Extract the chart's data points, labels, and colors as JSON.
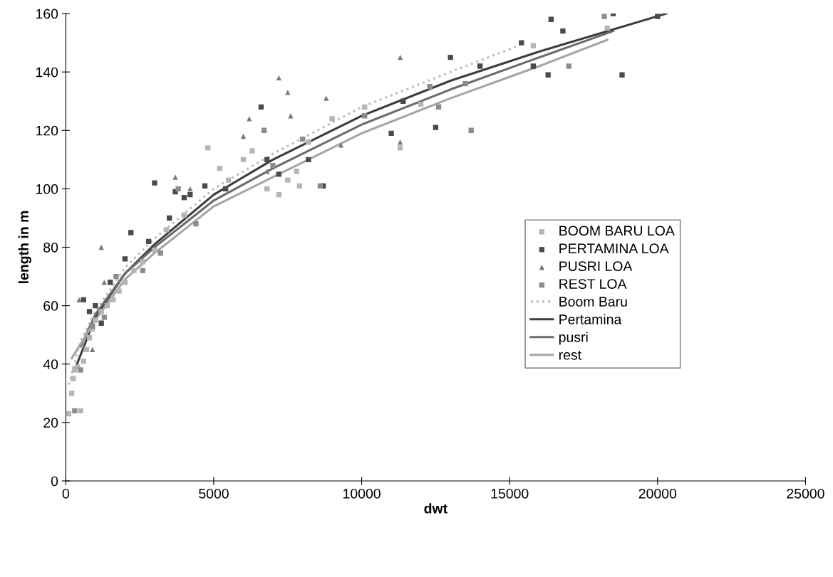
{
  "chart_data": {
    "type": "scatter",
    "xlabel": "dwt",
    "ylabel": "length in m",
    "xlim": [
      0,
      25000
    ],
    "ylim": [
      0,
      160
    ],
    "xticks": [
      0,
      5000,
      10000,
      15000,
      20000,
      25000
    ],
    "yticks": [
      0,
      20,
      40,
      60,
      80,
      100,
      120,
      140,
      160
    ],
    "grid": false,
    "legend": "right",
    "series": [
      {
        "name": "BOOM BARU LOA",
        "marker": "square",
        "color": "#b5b5b5",
        "x": [
          100,
          200,
          250,
          300,
          400,
          500,
          600,
          700,
          800,
          900,
          1000,
          1200,
          1400,
          1600,
          1800,
          2000,
          2300,
          2600,
          3000,
          3400,
          4000,
          4800,
          5200,
          5500,
          6000,
          6300,
          6800,
          7200,
          7500,
          7800,
          7900,
          8200,
          9000,
          10100,
          11300,
          12000,
          15800,
          18300
        ],
        "values": [
          23,
          30,
          35,
          38,
          39,
          24,
          41,
          45,
          49,
          52,
          55,
          58,
          60,
          62,
          65,
          68,
          72,
          75,
          79,
          86,
          91,
          114,
          107,
          103,
          110,
          113,
          100,
          98,
          103,
          106,
          101,
          116,
          124,
          128,
          114,
          129,
          149,
          155
        ]
      },
      {
        "name": "PERTAMINA LOA",
        "marker": "square",
        "color": "#4a4a4a",
        "x": [
          600,
          800,
          1000,
          1200,
          1500,
          2000,
          2200,
          2800,
          3000,
          3500,
          3700,
          4000,
          4200,
          4700,
          5400,
          6600,
          6800,
          7200,
          8200,
          8700,
          11000,
          11400,
          12500,
          13000,
          14000,
          15400,
          15800,
          16300,
          16400,
          16800,
          18500,
          18800,
          20000
        ],
        "values": [
          62,
          58,
          60,
          54,
          68,
          76,
          85,
          82,
          102,
          90,
          99,
          97,
          98,
          101,
          100,
          128,
          110,
          105,
          110,
          101,
          119,
          130,
          121,
          145,
          142,
          150,
          142,
          139,
          158,
          154,
          160,
          139,
          159
        ]
      },
      {
        "name": "PUSRI LOA",
        "marker": "triangle",
        "color": "#7a7a7a",
        "x": [
          450,
          900,
          1200,
          1300,
          3700,
          4200,
          6000,
          6200,
          6800,
          7200,
          7500,
          7600,
          8800,
          9300,
          11300,
          11300
        ],
        "values": [
          62,
          45,
          80,
          68,
          104,
          100,
          118,
          124,
          106,
          138,
          133,
          125,
          131,
          115,
          145,
          116
        ]
      },
      {
        "name": "REST LOA",
        "marker": "square",
        "color": "#8c8c8c",
        "x": [
          300,
          500,
          900,
          1300,
          1700,
          2600,
          3200,
          3800,
          4400,
          6700,
          7000,
          8000,
          8600,
          10100,
          12300,
          12600,
          13500,
          13700,
          17000,
          18200
        ],
        "values": [
          24,
          38,
          53,
          56,
          70,
          72,
          78,
          100,
          88,
          120,
          108,
          117,
          101,
          125,
          135,
          128,
          136,
          120,
          142,
          159
        ]
      },
      {
        "name": "Boom Baru",
        "type": "line",
        "line_style": "dotted",
        "color": "#bdbdbd",
        "x": [
          100,
          500,
          1000,
          2000,
          3000,
          5000,
          7000,
          10000,
          13000,
          15300
        ],
        "values": [
          33,
          48,
          58,
          73,
          83,
          100,
          112,
          128,
          140,
          149
        ]
      },
      {
        "name": "Pertamina",
        "type": "line",
        "line_style": "solid",
        "color": "#3c3c3c",
        "x": [
          300,
          1000,
          2000,
          3000,
          5000,
          7000,
          10000,
          13000,
          16000,
          20300
        ],
        "values": [
          38,
          56,
          71,
          81,
          98,
          110,
          125,
          137,
          147,
          160
        ]
      },
      {
        "name": "pusri",
        "type": "line",
        "line_style": "solid",
        "color": "#6a6a6a",
        "x": [
          500,
          1000,
          2000,
          3000,
          5000,
          7000,
          10000,
          13000,
          16000,
          18500
        ],
        "values": [
          46,
          57,
          71,
          80,
          96,
          107,
          122,
          134,
          145,
          154
        ]
      },
      {
        "name": "rest",
        "type": "line",
        "line_style": "solid",
        "color": "#a5a5a5",
        "x": [
          200,
          1000,
          2000,
          3000,
          5000,
          7000,
          10000,
          13000,
          16000,
          18300
        ],
        "values": [
          42,
          55,
          69,
          78,
          94,
          104,
          119,
          131,
          142,
          151
        ]
      }
    ]
  }
}
